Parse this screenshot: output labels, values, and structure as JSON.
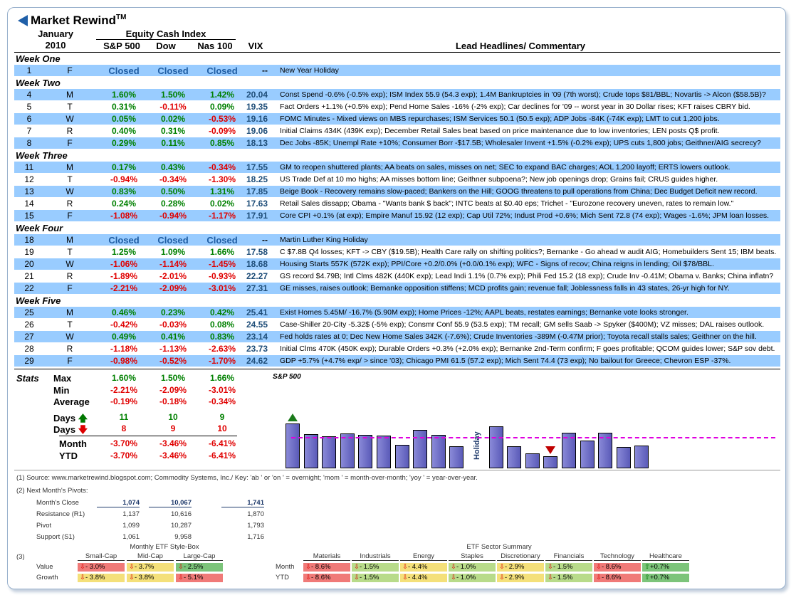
{
  "title": "Market Rewind",
  "title_tm": "TM",
  "period": {
    "month": "January",
    "year": "2010"
  },
  "header": {
    "equity": "Equity Cash Index",
    "sp": "S&P 500",
    "dow": "Dow",
    "nas": "Nas 100",
    "vix": "VIX",
    "headlines": "Lead Headlines/ Commentary"
  },
  "weeks": [
    {
      "label": "Week One",
      "rows": [
        {
          "num": "1",
          "day": "F",
          "sp": "Closed",
          "dow": "Closed",
          "nas": "Closed",
          "vix": "--",
          "hl": "New Year Holiday",
          "closed": true,
          "blue": true
        }
      ]
    },
    {
      "label": "Week Two",
      "rows": [
        {
          "num": "4",
          "day": "M",
          "sp": "1.60%",
          "dow": "1.50%",
          "nas": "1.42%",
          "vix": "20.04",
          "hl": "Const Spend -0.6% (-0.5% exp); ISM Index 55.9 (54.3 exp); 1.4M Bankruptcies in '09 (7th worst); Crude tops $81/BBL; Novartis -> Alcon ($58.5B)?",
          "blue": true
        },
        {
          "num": "5",
          "day": "T",
          "sp": "0.31%",
          "dow": "-0.11%",
          "nas": "0.09%",
          "vix": "19.35",
          "hl": "Fact Orders +1.1% (+0.5% exp); Pend Home Sales -16% (-2% exp); Car declines for '09 -- worst year in 30 Dollar rises; KFT raises CBRY bid.",
          "blue": false
        },
        {
          "num": "6",
          "day": "W",
          "sp": "0.05%",
          "dow": "0.02%",
          "nas": "-0.53%",
          "vix": "19.16",
          "hl": "FOMC Minutes - Mixed views on MBS repurchases; ISM Services 50.1 (50.5 exp); ADP Jobs -84K (-74K exp); LMT to cut 1,200 jobs.",
          "blue": true
        },
        {
          "num": "7",
          "day": "R",
          "sp": "0.40%",
          "dow": "0.31%",
          "nas": "-0.09%",
          "vix": "19.06",
          "hl": "Initial Claims 434K (439K exp); December Retail Sales beat based on price maintenance due to low inventories; LEN posts Q$ profit.",
          "blue": false
        },
        {
          "num": "8",
          "day": "F",
          "sp": "0.29%",
          "dow": "0.11%",
          "nas": "0.85%",
          "vix": "18.13",
          "hl": "Dec Jobs -85K; Unempl Rate +10%; Consumer Borr -$17.5B; Wholesaler Invent +1.5% (-0.2% exp); UPS cuts 1,800 jobs; Geithner/AIG secrecy?",
          "blue": true
        }
      ]
    },
    {
      "label": "Week Three",
      "rows": [
        {
          "num": "11",
          "day": "M",
          "sp": "0.17%",
          "dow": "0.43%",
          "nas": "-0.34%",
          "vix": "17.55",
          "hl": "GM to reopen shuttered plants; AA beats on sales, misses on net; SEC to expand BAC charges; AOL 1,200 layoff; ERTS lowers outlook.",
          "blue": true
        },
        {
          "num": "12",
          "day": "T",
          "sp": "-0.94%",
          "dow": "-0.34%",
          "nas": "-1.30%",
          "vix": "18.25",
          "hl": "US Trade Def at 10 mo highs; AA misses bottom line; Geithner subpoena?; New job openings drop; Grains fail; CRUS guides higher.",
          "blue": false
        },
        {
          "num": "13",
          "day": "W",
          "sp": "0.83%",
          "dow": "0.50%",
          "nas": "1.31%",
          "vix": "17.85",
          "hl": "Beige Book - Recovery remains slow-paced; Bankers on the Hill; GOOG threatens to pull operations from China; Dec Budget Deficit new record.",
          "blue": true
        },
        {
          "num": "14",
          "day": "R",
          "sp": "0.24%",
          "dow": "0.28%",
          "nas": "0.02%",
          "vix": "17.63",
          "hl": "Retail Sales dissapp; Obama - \"Wants bank $ back\"; INTC beats at $0.40 eps; Trichet - \"Eurozone recovery uneven, rates to remain low.\"",
          "blue": false
        },
        {
          "num": "15",
          "day": "F",
          "sp": "-1.08%",
          "dow": "-0.94%",
          "nas": "-1.17%",
          "vix": "17.91",
          "hl": "Core CPI +0.1% (at exp); Empire Manuf 15.92 (12 exp); Cap Util 72%; Indust Prod +0.6%; Mich Sent 72.8 (74 exp); Wages -1.6%; JPM loan losses.",
          "blue": true
        }
      ]
    },
    {
      "label": "Week Four",
      "rows": [
        {
          "num": "18",
          "day": "M",
          "sp": "Closed",
          "dow": "Closed",
          "nas": "Closed",
          "vix": "--",
          "hl": "Martin Luther King Holiday",
          "closed": true,
          "blue": true
        },
        {
          "num": "19",
          "day": "T",
          "sp": "1.25%",
          "dow": "1.09%",
          "nas": "1.66%",
          "vix": "17.58",
          "hl": "C $7.8B Q4 losses; KFT -> CBY ($19.5B); Health Care rally on shifting politics?; Bernanke - Go ahead w audit AIG; Homebuilders Sent 15; IBM beats.",
          "blue": false
        },
        {
          "num": "20",
          "day": "W",
          "sp": "-1.06%",
          "dow": "-1.14%",
          "nas": "-1.45%",
          "vix": "18.68",
          "hl": "Housing Starts 557K (572K exp); PPI/Core +0.2/0.0% (+0.0/0.1% exp); WFC - Signs of recov; China reigns in lending; Oil $78/BBL.",
          "blue": true
        },
        {
          "num": "21",
          "day": "R",
          "sp": "-1.89%",
          "dow": "-2.01%",
          "nas": "-0.93%",
          "vix": "22.27",
          "hl": "GS record $4.79B; Intl Clms 482K (440K exp); Lead Indi 1.1% (0.7% exp); Phili Fed 15.2 (18 exp); Crude Inv -0.41M; Obama v. Banks; China inflatn?",
          "blue": false
        },
        {
          "num": "22",
          "day": "F",
          "sp": "-2.21%",
          "dow": "-2.09%",
          "nas": "-3.01%",
          "vix": "27.31",
          "hl": "GE misses, raises outlook; Bernanke opposition stiffens; MCD profits gain; revenue fall; Joblessness falls in 43 states, 26-yr high for NY.",
          "blue": true
        }
      ]
    },
    {
      "label": "Week Five",
      "rows": [
        {
          "num": "25",
          "day": "M",
          "sp": "0.46%",
          "dow": "0.23%",
          "nas": "0.42%",
          "vix": "25.41",
          "hl": "Exist Homes 5.45M/ -16.7% (5.90M exp); Home Prices -12%; AAPL beats, restates earnings; Bernanke vote looks stronger.",
          "blue": true
        },
        {
          "num": "26",
          "day": "T",
          "sp": "-0.42%",
          "dow": "-0.03%",
          "nas": "0.08%",
          "vix": "24.55",
          "hl": "Case-Shiller 20-City -5.32$ (-5% exp); Consmr Conf 55.9 (53.5 exp); TM recall; GM sells Saab -> Spyker ($400M); VZ misses; DAL raises outlook.",
          "blue": false
        },
        {
          "num": "27",
          "day": "W",
          "sp": "0.49%",
          "dow": "0.41%",
          "nas": "0.83%",
          "vix": "23.14",
          "hl": "Fed holds rates at 0; Dec New Home Sales 342K (-7.6%); Crude Inventories -389M (-0.47M prior); Toyota recall stalls sales; Geithner on the hill.",
          "blue": true
        },
        {
          "num": "28",
          "day": "R",
          "sp": "-1.18%",
          "dow": "-1.13%",
          "nas": "-2.63%",
          "vix": "23.73",
          "hl": "Initial Clms 470K (450K exp); Durable Orders +0.3% (+2.0% exp); Bernanke 2nd-Term confirm; F goes profitable; QCOM guides lower; S&P sov debt.",
          "blue": false
        },
        {
          "num": "29",
          "day": "F",
          "sp": "-0.98%",
          "dow": "-0.52%",
          "nas": "-1.70%",
          "vix": "24.62",
          "hl": "GDP +5.7% (+4.7% exp/ > since '03); Chicago PMI 61.5 (57.2 exp); Mich Sent 74.4 (73 exp); No bailout for Greece; Chevron ESP -37%.",
          "blue": true
        }
      ]
    }
  ],
  "stats": {
    "label": "Stats",
    "max": {
      "label": "Max",
      "sp": "1.60%",
      "dow": "1.50%",
      "nas": "1.66%"
    },
    "min": {
      "label": "Min",
      "sp": "-2.21%",
      "dow": "-2.09%",
      "nas": "-3.01%"
    },
    "avg": {
      "label": "Average",
      "sp": "-0.19%",
      "dow": "-0.18%",
      "nas": "-0.34%"
    },
    "up": {
      "label": "Days",
      "sp": "11",
      "dow": "10",
      "nas": "9"
    },
    "down": {
      "label": "Days",
      "sp": "8",
      "dow": "9",
      "nas": "10"
    },
    "month": {
      "label": "Month",
      "sp": "-3.70%",
      "dow": "-3.46%",
      "nas": "-6.41%"
    },
    "ytd": {
      "label": "YTD",
      "sp": "-3.70%",
      "dow": "-3.46%",
      "nas": "-6.41%"
    }
  },
  "chart_data": {
    "type": "bar",
    "title": "S&P 500",
    "holiday_label": "Holiday",
    "values": [
      1.6,
      0.31,
      0.05,
      0.4,
      0.29,
      0.17,
      -0.94,
      0.83,
      0.24,
      -1.08,
      null,
      1.25,
      -1.06,
      -1.89,
      -2.21,
      0.46,
      -0.42,
      0.49,
      -1.18,
      -0.98
    ],
    "avg": -0.19,
    "colors": {
      "bar": "#6b6bc8",
      "avg_line": "#e000e0"
    }
  },
  "footnotes": {
    "source": "(1)  Source:  www.marketrewind.blogspot.com; Commodity Systems, Inc./ Key:  'ab ' or 'on ' = overnight; 'mom ' = month-over-month; 'yoy ' = year-over-year.",
    "pivots_title": "(2)  Next Month's Pivots:"
  },
  "pivots": {
    "rows": [
      {
        "label": "Month's Close",
        "sp": "1,074",
        "dow": "10,067",
        "nas": "1,741",
        "head": true
      },
      {
        "label": "Resistance (R1)",
        "sp": "1,137",
        "dow": "10,616",
        "nas": "1,870"
      },
      {
        "label": "Pivot",
        "sp": "1,099",
        "dow": "10,287",
        "nas": "1,793"
      },
      {
        "label": "Support (S1)",
        "sp": "1,061",
        "dow": "9,958",
        "nas": "1,716"
      }
    ]
  },
  "etf_style": {
    "num": "(3)",
    "title": "Monthly ETF Style-Box",
    "cols": [
      "Small-Cap",
      "Mid-Cap",
      "Large-Cap"
    ],
    "rows": [
      {
        "label": "Value",
        "cells": [
          {
            "v": "- 3.0%",
            "c": "red",
            "d": "down"
          },
          {
            "v": "- 3.7%",
            "c": "yel",
            "d": "down"
          },
          {
            "v": "- 2.5%",
            "c": "grn",
            "d": "down"
          }
        ]
      },
      {
        "label": "Growth",
        "cells": [
          {
            "v": "- 3.8%",
            "c": "yel",
            "d": "down"
          },
          {
            "v": "- 3.8%",
            "c": "yel",
            "d": "down"
          },
          {
            "v": "- 5.1%",
            "c": "red",
            "d": "down"
          }
        ]
      }
    ]
  },
  "etf_sector": {
    "title": "ETF Sector Summary",
    "cols": [
      "Materials",
      "Industrials",
      "Energy",
      "Staples",
      "Discretionary",
      "Financials",
      "Technology",
      "Healthcare"
    ],
    "rows": [
      {
        "label": "Month",
        "cells": [
          {
            "v": "- 8.6%",
            "c": "red",
            "d": "down"
          },
          {
            "v": "- 1.5%",
            "c": "lgrn",
            "d": "down"
          },
          {
            "v": "- 4.4%",
            "c": "yel",
            "d": "down"
          },
          {
            "v": "- 1.0%",
            "c": "lgrn",
            "d": "down"
          },
          {
            "v": "- 2.9%",
            "c": "yel",
            "d": "down"
          },
          {
            "v": "- 1.5%",
            "c": "lgrn",
            "d": "down"
          },
          {
            "v": "- 8.6%",
            "c": "red",
            "d": "down"
          },
          {
            "v": "+0.7%",
            "c": "grn",
            "d": "up"
          }
        ]
      },
      {
        "label": "YTD",
        "cells": [
          {
            "v": "- 8.6%",
            "c": "red",
            "d": "down"
          },
          {
            "v": "- 1.5%",
            "c": "lgrn",
            "d": "down"
          },
          {
            "v": "- 4.4%",
            "c": "yel",
            "d": "down"
          },
          {
            "v": "- 1.0%",
            "c": "lgrn",
            "d": "down"
          },
          {
            "v": "- 2.9%",
            "c": "yel",
            "d": "down"
          },
          {
            "v": "- 1.5%",
            "c": "lgrn",
            "d": "down"
          },
          {
            "v": "- 8.6%",
            "c": "red",
            "d": "down"
          },
          {
            "v": "+0.7%",
            "c": "grn",
            "d": "up"
          }
        ]
      }
    ]
  }
}
